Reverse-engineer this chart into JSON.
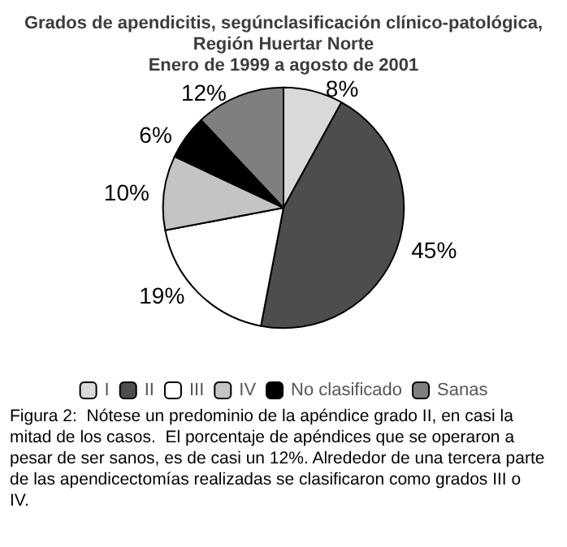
{
  "chart_data": {
    "type": "pie",
    "title": "Grados de apendicitis, segúnclasificación clínico-patológica,\nRegión Huertar Norte\nEnero de 1999 a agosto de 2001",
    "categories": [
      "I",
      "II",
      "III",
      "IV",
      "No clasificado",
      "Sanas"
    ],
    "values": [
      8,
      45,
      19,
      10,
      6,
      12
    ],
    "colors": [
      "#d9d9d9",
      "#4d4d4d",
      "#ffffff",
      "#c4c4c4",
      "#000000",
      "#7f7f7f"
    ],
    "value_labels": [
      "8%",
      "45%",
      "19%",
      "10%",
      "6%",
      "12%"
    ],
    "legend": "bottom",
    "annotations": [
      "Figura 2:  Nótese un predominio de la apéndice grado II, en casi la mitad de los casos.  El porcentaje de apéndices que se operaron a pesar de ser sanos, es de casi un 12%. Alrededor de una tercera parte de las apendicectomías realizadas se clasificaron como grados III o  IV."
    ]
  }
}
